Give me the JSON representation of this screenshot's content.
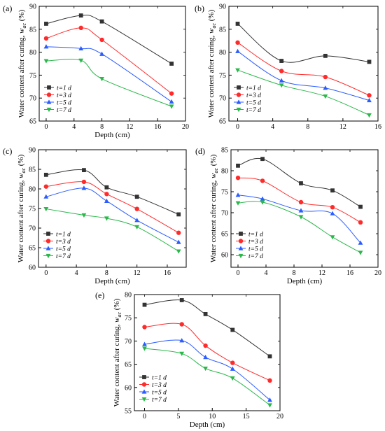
{
  "chart_data": [
    {
      "panel_label": "(a)",
      "type": "line",
      "xlabel": "Depth (cm)",
      "ylabel": "Water content after curing, w_ac (%)",
      "xlim": [
        -1,
        20
      ],
      "ylim": [
        65,
        90
      ],
      "xticks": [
        0,
        4,
        8,
        12,
        16,
        20
      ],
      "yticks": [
        65,
        70,
        75,
        80,
        85,
        90
      ],
      "legend_position": "lower-left",
      "series": [
        {
          "name": "t=1 d",
          "color": "#333333",
          "marker": "square",
          "x": [
            0,
            5,
            8,
            18
          ],
          "y": [
            86.2,
            88.0,
            86.7,
            77.5
          ]
        },
        {
          "name": "t=3 d",
          "color": "#ff2a2a",
          "marker": "circle",
          "x": [
            0,
            5,
            8,
            18
          ],
          "y": [
            83.0,
            85.3,
            82.7,
            71.0
          ]
        },
        {
          "name": "t=5 d",
          "color": "#2a5cff",
          "marker": "triangle-up",
          "x": [
            0,
            5,
            8,
            18
          ],
          "y": [
            81.2,
            80.8,
            79.6,
            69.2
          ]
        },
        {
          "name": "t=7 d",
          "color": "#2ab84a",
          "marker": "triangle-down",
          "x": [
            0,
            5,
            8,
            18
          ],
          "y": [
            78.1,
            78.2,
            74.2,
            68.2
          ]
        }
      ]
    },
    {
      "panel_label": "(b)",
      "type": "line",
      "xlabel": "",
      "ylabel": "Water content after curing, w_ac (%)",
      "xlim": [
        -1,
        16
      ],
      "ylim": [
        65,
        90
      ],
      "xticks": [
        0,
        4,
        8,
        12,
        16
      ],
      "yticks": [
        65,
        70,
        75,
        80,
        85,
        90
      ],
      "legend_position": "lower-left",
      "series": [
        {
          "name": "t=1 d",
          "color": "#333333",
          "marker": "square",
          "x": [
            0,
            5,
            10,
            15
          ],
          "y": [
            86.2,
            78.1,
            79.2,
            77.9
          ]
        },
        {
          "name": "t=3 d",
          "color": "#ff2a2a",
          "marker": "circle",
          "x": [
            0,
            5,
            10,
            15
          ],
          "y": [
            82.1,
            75.9,
            74.6,
            70.6
          ]
        },
        {
          "name": "t=5 d",
          "color": "#2a5cff",
          "marker": "triangle-up",
          "x": [
            0,
            5,
            10,
            15
          ],
          "y": [
            80.2,
            73.8,
            72.2,
            69.5
          ]
        },
        {
          "name": "t=7 d",
          "color": "#2ab84a",
          "marker": "triangle-down",
          "x": [
            0,
            5,
            10,
            15
          ],
          "y": [
            76.1,
            72.8,
            70.4,
            66.3
          ]
        }
      ]
    },
    {
      "panel_label": "(c)",
      "type": "line",
      "xlabel": "Depth (cm)",
      "ylabel": "Water content after curing, w_ac (%)",
      "xlim": [
        -1,
        18.5
      ],
      "ylim": [
        60,
        90
      ],
      "xticks": [
        0,
        4,
        8,
        12,
        16
      ],
      "yticks": [
        60,
        65,
        70,
        75,
        80,
        85,
        90
      ],
      "legend_position": "lower-left",
      "series": [
        {
          "name": "t=1 d",
          "color": "#333333",
          "marker": "square",
          "x": [
            0,
            5,
            8,
            12,
            17.5
          ],
          "y": [
            83.6,
            84.8,
            80.4,
            78.0,
            73.5
          ]
        },
        {
          "name": "t=3 d",
          "color": "#ff2a2a",
          "marker": "circle",
          "x": [
            0,
            5,
            8,
            12,
            17.5
          ],
          "y": [
            80.6,
            81.8,
            78.7,
            74.9,
            68.8
          ]
        },
        {
          "name": "t=5 d",
          "color": "#2a5cff",
          "marker": "triangle-up",
          "x": [
            0,
            5,
            8,
            12,
            17.5
          ],
          "y": [
            78.0,
            80.2,
            76.9,
            72.0,
            66.4
          ]
        },
        {
          "name": "t=7 d",
          "color": "#2ab84a",
          "marker": "triangle-down",
          "x": [
            0,
            5,
            8,
            12,
            17.5
          ],
          "y": [
            74.9,
            73.3,
            72.5,
            70.3,
            64.1
          ]
        }
      ]
    },
    {
      "panel_label": "(d)",
      "type": "line",
      "xlabel": "Depth (cm)",
      "ylabel": "Water content after curing, w_ac (%)",
      "xlim": [
        -1,
        20
      ],
      "ylim": [
        57,
        85
      ],
      "xticks": [
        0,
        4,
        8,
        12,
        16,
        20
      ],
      "yticks": [
        60,
        65,
        70,
        75,
        80,
        85
      ],
      "legend_position": "lower-left",
      "series": [
        {
          "name": "t=1 d",
          "color": "#333333",
          "marker": "square",
          "x": [
            0,
            3.5,
            9,
            13.5,
            17.5
          ],
          "y": [
            81.2,
            82.8,
            77.0,
            75.3,
            71.4
          ]
        },
        {
          "name": "t=3 d",
          "color": "#ff2a2a",
          "marker": "circle",
          "x": [
            0,
            3.5,
            9,
            13.5,
            17.5
          ],
          "y": [
            78.3,
            77.6,
            72.5,
            71.3,
            67.7
          ]
        },
        {
          "name": "t=5 d",
          "color": "#2a5cff",
          "marker": "triangle-up",
          "x": [
            0,
            3.5,
            9,
            13.5,
            17.5
          ],
          "y": [
            74.2,
            73.3,
            70.5,
            69.8,
            62.8
          ]
        },
        {
          "name": "t=7 d",
          "color": "#2ab84a",
          "marker": "triangle-down",
          "x": [
            0,
            3.5,
            9,
            13.5,
            17.5
          ],
          "y": [
            72.3,
            72.5,
            69.0,
            64.2,
            60.5
          ]
        }
      ]
    },
    {
      "panel_label": "(e)",
      "type": "line",
      "xlabel": "Depth (cm)",
      "ylabel": "Water content after curing, w_ac (%)",
      "xlim": [
        -1.5,
        20
      ],
      "ylim": [
        55,
        80
      ],
      "xticks": [
        0,
        5,
        10,
        15,
        20
      ],
      "yticks": [
        55,
        60,
        65,
        70,
        75,
        80
      ],
      "legend_position": "lower-left",
      "series": [
        {
          "name": "t=1 d",
          "color": "#333333",
          "marker": "square",
          "x": [
            0,
            5.5,
            9,
            13,
            18.5
          ],
          "y": [
            77.8,
            78.8,
            75.8,
            72.4,
            66.7
          ]
        },
        {
          "name": "t=3 d",
          "color": "#ff2a2a",
          "marker": "circle",
          "x": [
            0,
            5.5,
            9,
            13,
            18.5
          ],
          "y": [
            73.0,
            73.6,
            69.0,
            65.3,
            61.5
          ]
        },
        {
          "name": "t=5 d",
          "color": "#2a5cff",
          "marker": "triangle-up",
          "x": [
            0,
            5.5,
            9,
            13,
            18.5
          ],
          "y": [
            69.3,
            70.1,
            66.5,
            64.0,
            57.3
          ]
        },
        {
          "name": "t=7 d",
          "color": "#2ab84a",
          "marker": "triangle-down",
          "x": [
            0,
            5.5,
            9,
            13,
            18.5
          ],
          "y": [
            68.4,
            67.3,
            64.1,
            62.0,
            56.2
          ]
        }
      ]
    }
  ]
}
